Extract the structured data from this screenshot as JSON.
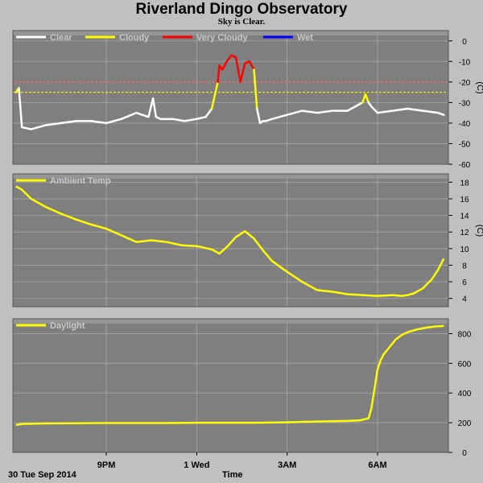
{
  "title": "Riverland Dingo Observatory",
  "subtitle": "Sky is Clear.",
  "footer": {
    "date": "30 Tue Sep 2014",
    "xaxis_label": "Time"
  },
  "colors": {
    "clear": "#ffffff",
    "cloudy": "#ffff00",
    "very_cloudy": "#ff0000",
    "wet": "#0000ff",
    "ambient": "#ffff00",
    "daylight": "#ffff00",
    "plot_bg": "#7f7f7f",
    "grid": "#a0a0a0",
    "threshold_cloudy": "#ffff00",
    "threshold_very_cloudy": "#ff4040"
  },
  "chart_data": [
    {
      "id": "sky",
      "type": "line",
      "legend": [
        "Clear",
        "Cloudy",
        "Very Cloudy",
        "Wet"
      ],
      "yunit": "(C)",
      "ylim": [
        -60,
        5
      ],
      "yticks": [
        0,
        -10,
        -20,
        -30,
        -40,
        -50,
        -60
      ],
      "thresholds": [
        {
          "name": "Very Cloudy",
          "y": -20
        },
        {
          "name": "Cloudy",
          "y": -25
        }
      ],
      "x_hours": [
        18.0,
        18.1,
        18.2,
        18.5,
        19.0,
        19.5,
        20.0,
        20.5,
        21.0,
        21.5,
        22.0,
        22.4,
        22.55,
        22.65,
        22.8,
        23.2,
        23.6,
        24.0,
        24.3,
        24.5,
        24.7,
        24.75,
        24.85,
        25.0,
        25.15,
        25.3,
        25.45,
        25.6,
        25.75,
        25.9,
        26.0,
        26.1,
        26.2,
        26.3,
        26.5,
        27.0,
        27.5,
        28.0,
        28.5,
        29.0,
        29.5,
        29.6,
        29.7,
        29.8,
        30.0,
        30.5,
        31.0,
        31.5,
        32.0,
        32.2
      ],
      "y": [
        -25,
        -23,
        -42,
        -43,
        -41,
        -40,
        -39,
        -39,
        -40,
        -38,
        -35,
        -37,
        -28,
        -37,
        -38,
        -38,
        -39,
        -38,
        -37,
        -33,
        -20,
        -12,
        -14,
        -10,
        -7,
        -8,
        -20,
        -11,
        -10,
        -14,
        -33,
        -40,
        -39,
        -39,
        -38,
        -36,
        -34,
        -35,
        -34,
        -34,
        -30,
        -26,
        -30,
        -32,
        -35,
        -34,
        -33,
        -34,
        -35,
        -36
      ]
    },
    {
      "id": "ambient",
      "type": "line",
      "legend": [
        "Ambient Temp"
      ],
      "yunit": "(C)",
      "ylim": [
        3,
        19
      ],
      "yticks": [
        18,
        16,
        14,
        12,
        10,
        8,
        6,
        4
      ],
      "x_hours": [
        18.0,
        18.2,
        18.5,
        19.0,
        19.5,
        20.0,
        20.5,
        21.0,
        21.5,
        22.0,
        22.5,
        23.0,
        23.5,
        24.0,
        24.5,
        24.75,
        25.0,
        25.3,
        25.6,
        25.9,
        26.2,
        26.5,
        27.0,
        27.5,
        28.0,
        28.5,
        29.0,
        29.5,
        30.0,
        30.5,
        30.8,
        31.0,
        31.2,
        31.5,
        31.8,
        32.0,
        32.2
      ],
      "y": [
        17.5,
        17.1,
        16.0,
        15.0,
        14.2,
        13.5,
        12.9,
        12.4,
        11.6,
        10.8,
        11.0,
        10.8,
        10.4,
        10.3,
        9.9,
        9.4,
        10.2,
        11.4,
        12.1,
        11.2,
        9.8,
        8.5,
        7.2,
        6.0,
        5.0,
        4.8,
        4.5,
        4.4,
        4.3,
        4.4,
        4.3,
        4.4,
        4.6,
        5.2,
        6.3,
        7.4,
        8.8
      ]
    },
    {
      "id": "daylight",
      "type": "line",
      "legend": [
        "Daylight"
      ],
      "yunit": "",
      "ylim": [
        0,
        900
      ],
      "yticks": [
        800,
        600,
        400,
        200,
        0
      ],
      "x_hours": [
        18.0,
        18.2,
        19.0,
        20.0,
        21.0,
        22.0,
        23.0,
        24.0,
        25.0,
        26.0,
        27.0,
        28.0,
        29.0,
        29.4,
        29.7,
        29.8,
        29.9,
        30.0,
        30.1,
        30.2,
        30.4,
        30.6,
        30.8,
        31.0,
        31.3,
        31.6,
        31.9,
        32.2
      ],
      "y": [
        185,
        192,
        195,
        197,
        198,
        198,
        198,
        200,
        200,
        200,
        203,
        208,
        212,
        215,
        230,
        300,
        430,
        560,
        620,
        660,
        710,
        760,
        790,
        810,
        828,
        840,
        848,
        852
      ]
    }
  ],
  "x_axis": {
    "ticks": [
      {
        "hour": 21,
        "label": "9PM"
      },
      {
        "hour": 24,
        "label": "1 Wed"
      },
      {
        "hour": 27,
        "label": "3AM"
      },
      {
        "hour": 30,
        "label": "6AM"
      }
    ]
  }
}
